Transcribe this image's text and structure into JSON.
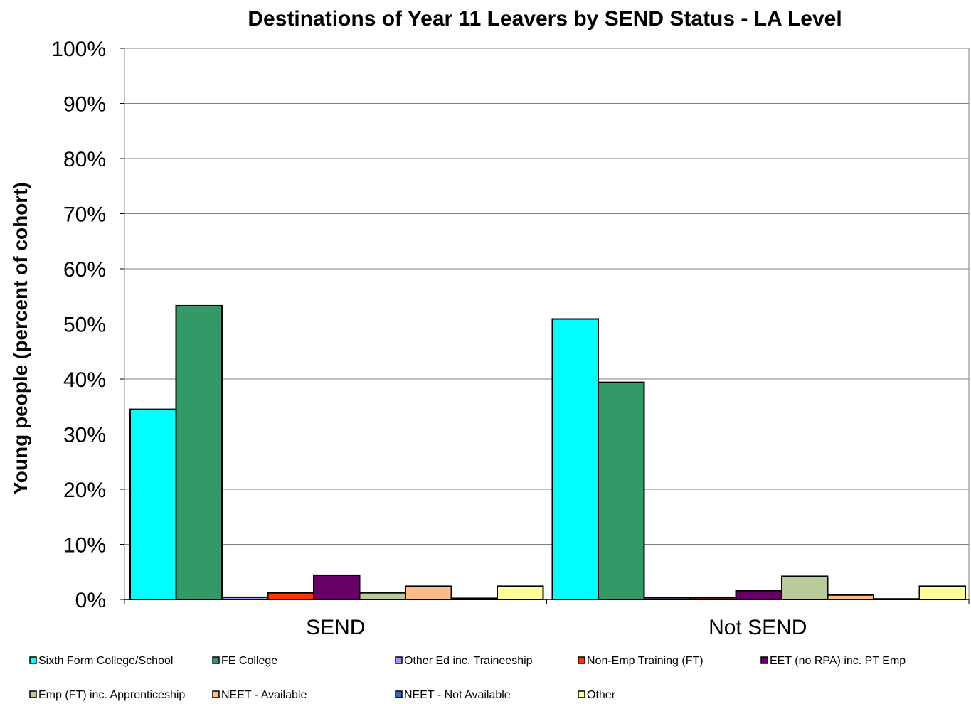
{
  "chart_data": {
    "type": "bar",
    "title": "Destinations of Year 11 Leavers by SEND Status - LA Level",
    "ylabel": "Young people (percent of cohort)",
    "xlabel": "",
    "ylim": [
      0,
      100
    ],
    "yticks": [
      0,
      10,
      20,
      30,
      40,
      50,
      60,
      70,
      80,
      90,
      100
    ],
    "ytick_labels": [
      "0%",
      "10%",
      "20%",
      "30%",
      "40%",
      "50%",
      "60%",
      "70%",
      "80%",
      "90%",
      "100%"
    ],
    "grid": true,
    "legend_position": "bottom",
    "categories": [
      "SEND",
      "Not SEND"
    ],
    "series": [
      {
        "name": "Sixth Form College/School",
        "color": "#00FFFF",
        "values": [
          34.5,
          50.9
        ]
      },
      {
        "name": "FE College",
        "color": "#339966",
        "values": [
          53.3,
          39.4
        ]
      },
      {
        "name": "Other Ed inc. Traineeship",
        "color": "#9999FF",
        "values": [
          0.4,
          0.3
        ]
      },
      {
        "name": "Non-Emp Training (FT)",
        "color": "#FF3300",
        "values": [
          1.2,
          0.3
        ]
      },
      {
        "name": "EET (no RPA) inc. PT Emp",
        "color": "#660066",
        "values": [
          4.4,
          1.6
        ]
      },
      {
        "name": "Emp (FT) inc. Apprenticeship",
        "color": "#B8CC99",
        "values": [
          1.2,
          4.2
        ]
      },
      {
        "name": "NEET - Available",
        "color": "#FFBB88",
        "values": [
          2.4,
          0.8
        ]
      },
      {
        "name": "NEET - Not Available",
        "color": "#3366CC",
        "values": [
          0.2,
          0.1
        ]
      },
      {
        "name": "Other",
        "color": "#FFFF99",
        "values": [
          2.4,
          2.4
        ]
      }
    ]
  }
}
